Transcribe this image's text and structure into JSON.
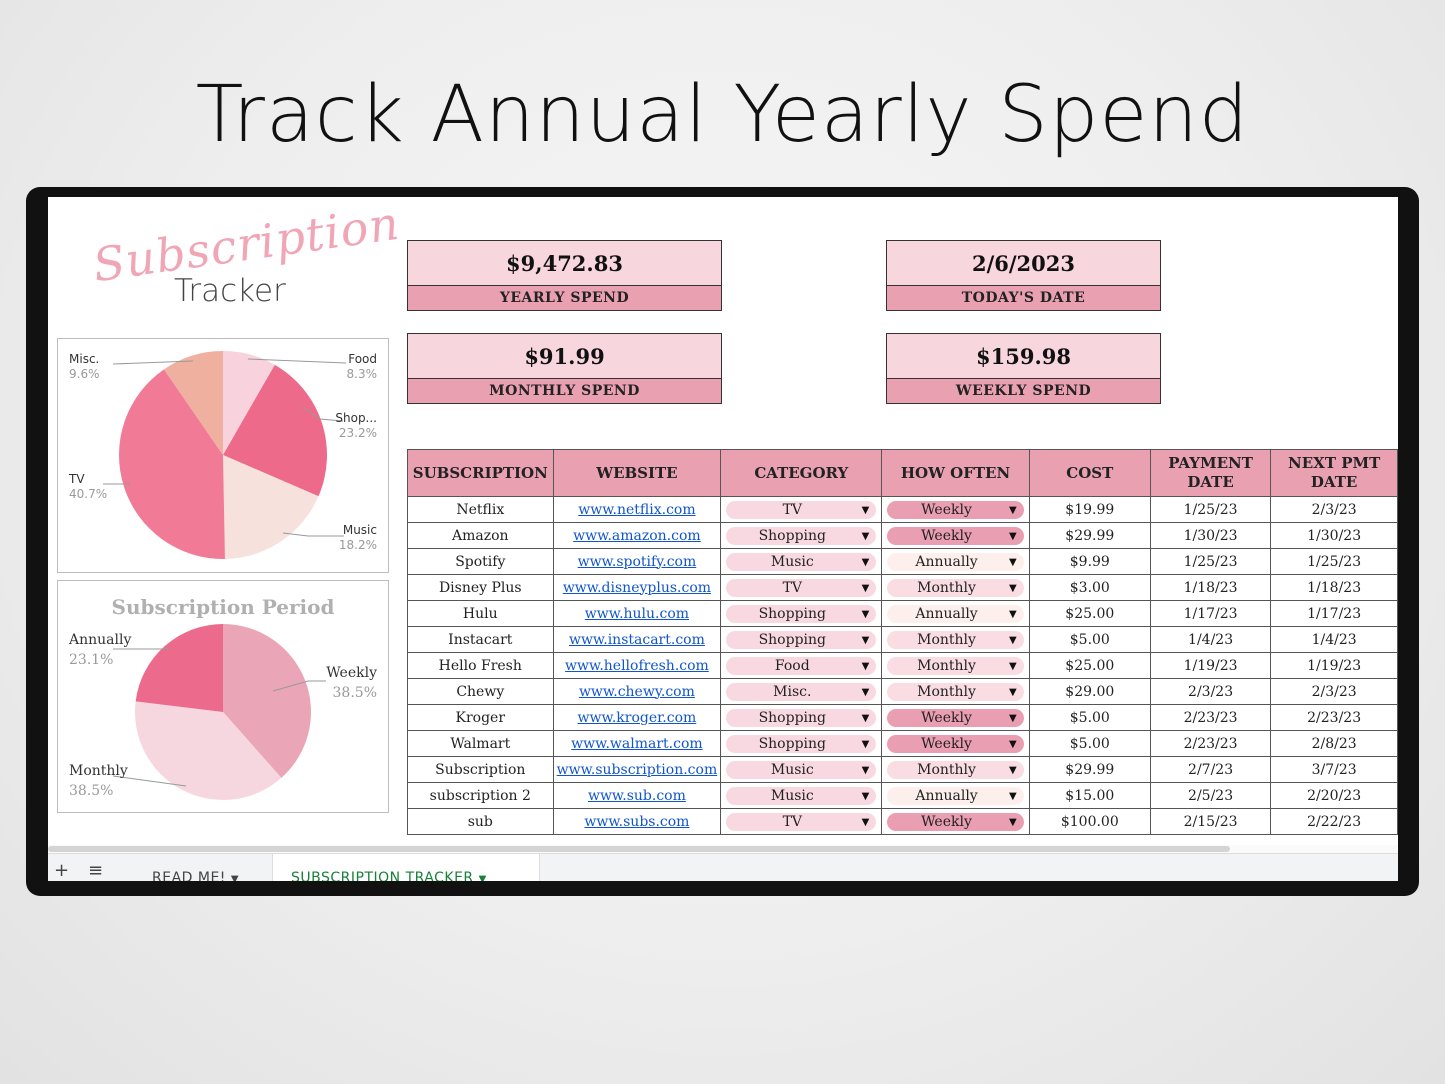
{
  "headline": "Track Annual Yearly Spend",
  "logo": {
    "script": "Subscription",
    "word": "Tracker"
  },
  "summary": {
    "yearly": {
      "value": "$9,472.83",
      "label": "YEARLY SPEND"
    },
    "today": {
      "value": "2/6/2023",
      "label": "TODAY'S DATE"
    },
    "monthly": {
      "value": "$91.99",
      "label": "MONTHLY SPEND"
    },
    "weekly": {
      "value": "$159.98",
      "label": "WEEKLY SPEND"
    }
  },
  "category_chart": {
    "type": "pie",
    "slices": [
      {
        "label": "Food",
        "pct_label": "8.3%",
        "value": 8.3,
        "color": "#f8d2dc"
      },
      {
        "label": "Shop...",
        "pct_label": "23.2%",
        "value": 23.2,
        "color": "#ee6a8a"
      },
      {
        "label": "Music",
        "pct_label": "18.2%",
        "value": 18.2,
        "color": "#f6e1dc"
      },
      {
        "label": "TV",
        "pct_label": "40.7%",
        "value": 40.7,
        "color": "#f17b97"
      },
      {
        "label": "Misc.",
        "pct_label": "9.6%",
        "value": 9.6,
        "color": "#efb0a0"
      }
    ]
  },
  "period_chart": {
    "type": "pie",
    "title": "Subscription Period",
    "slices": [
      {
        "label": "Weekly",
        "pct_label": "38.5%",
        "value": 38.5,
        "color": "#eaa6b6"
      },
      {
        "label": "Monthly",
        "pct_label": "38.5%",
        "value": 38.5,
        "color": "#f7d7df"
      },
      {
        "label": "Annually",
        "pct_label": "23.1%",
        "value": 23.1,
        "color": "#ec6a8b"
      }
    ]
  },
  "table": {
    "headers": [
      "SUBSCRIPTION",
      "WEBSITE",
      "CATEGORY",
      "HOW OFTEN",
      "COST",
      "PAYMENT DATE",
      "NEXT PMT DATE"
    ],
    "rows": [
      {
        "name": "Netflix",
        "site": "www.netflix.com",
        "category": "TV",
        "often": "Weekly",
        "cost": "$19.99",
        "pay": "1/25/23",
        "next": "2/3/23"
      },
      {
        "name": "Amazon",
        "site": "www.amazon.com",
        "category": "Shopping",
        "often": "Weekly",
        "cost": "$29.99",
        "pay": "1/30/23",
        "next": "1/30/23"
      },
      {
        "name": "Spotify",
        "site": "www.spotify.com",
        "category": "Music",
        "often": "Annually",
        "cost": "$9.99",
        "pay": "1/25/23",
        "next": "1/25/23"
      },
      {
        "name": "Disney Plus",
        "site": "www.disneyplus.com",
        "category": "TV",
        "often": "Monthly",
        "cost": "$3.00",
        "pay": "1/18/23",
        "next": "1/18/23"
      },
      {
        "name": "Hulu",
        "site": "www.hulu.com",
        "category": "Shopping",
        "often": "Annually",
        "cost": "$25.00",
        "pay": "1/17/23",
        "next": "1/17/23"
      },
      {
        "name": "Instacart",
        "site": "www.instacart.com",
        "category": "Shopping",
        "often": "Monthly",
        "cost": "$5.00",
        "pay": "1/4/23",
        "next": "1/4/23"
      },
      {
        "name": "Hello Fresh",
        "site": "www.hellofresh.com",
        "category": "Food",
        "often": "Monthly",
        "cost": "$25.00",
        "pay": "1/19/23",
        "next": "1/19/23"
      },
      {
        "name": "Chewy",
        "site": "www.chewy.com",
        "category": "Misc.",
        "often": "Monthly",
        "cost": "$29.00",
        "pay": "2/3/23",
        "next": "2/3/23"
      },
      {
        "name": "Kroger",
        "site": "www.kroger.com",
        "category": "Shopping",
        "often": "Weekly",
        "cost": "$5.00",
        "pay": "2/23/23",
        "next": "2/23/23"
      },
      {
        "name": "Walmart",
        "site": "www.walmart.com",
        "category": "Shopping",
        "often": "Weekly",
        "cost": "$5.00",
        "pay": "2/23/23",
        "next": "2/8/23"
      },
      {
        "name": "Subscription",
        "site": "www.subscription.com",
        "category": "Music",
        "often": "Monthly",
        "cost": "$29.99",
        "pay": "2/7/23",
        "next": "3/7/23"
      },
      {
        "name": "subscription 2",
        "site": "www.sub.com",
        "category": "Music",
        "often": "Annually",
        "cost": "$15.00",
        "pay": "2/5/23",
        "next": "2/20/23"
      },
      {
        "name": "sub",
        "site": "www.subs.com",
        "category": "TV",
        "often": "Weekly",
        "cost": "$100.00",
        "pay": "2/15/23",
        "next": "2/22/23"
      }
    ]
  },
  "tabs": [
    {
      "label": "READ ME!"
    },
    {
      "label": "SUBSCRIPTION TRACKER"
    }
  ],
  "icons": {
    "add": "plus-icon",
    "sheets": "menu-icon",
    "tab_menu": "caret-down-icon"
  }
}
